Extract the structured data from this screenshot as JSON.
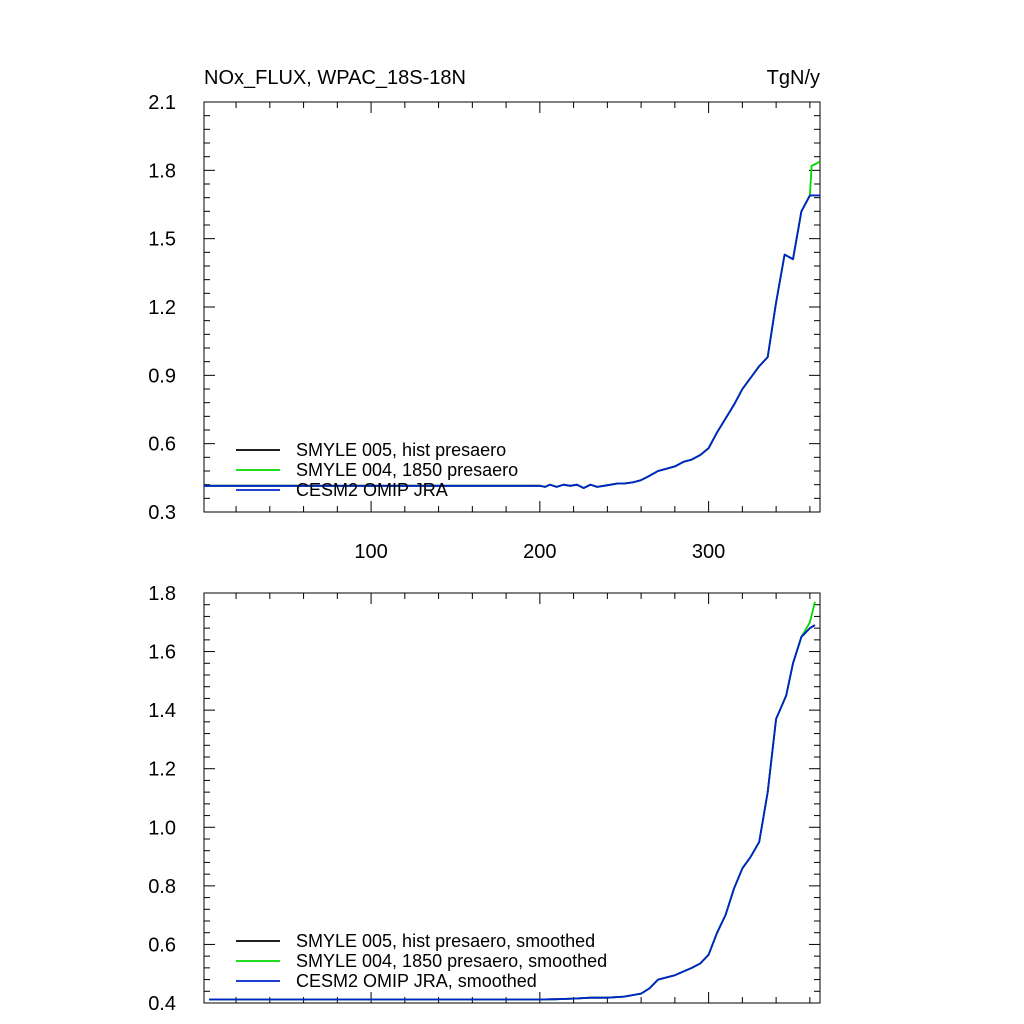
{
  "chart_data": [
    {
      "type": "line",
      "title_left": "NOx_FLUX, WPAC_18S-18N",
      "title_right": "TgN/y",
      "xlim": [
        1,
        366
      ],
      "ylim": [
        0.3,
        2.1
      ],
      "x_ticks": [
        100,
        200,
        300
      ],
      "y_ticks": [
        0.3,
        0.6,
        0.9,
        1.2,
        1.5,
        1.8,
        2.1
      ],
      "y_tick_labels": [
        "0.3",
        "0.6",
        "0.9",
        "1.2",
        "1.5",
        "1.8",
        "2.1"
      ],
      "x_tick_labels": [
        "100",
        "200",
        "300"
      ],
      "legend_position": "bottom-left",
      "series": [
        {
          "name": "SMYLE 005, hist presaero",
          "color": "#000000",
          "x": [
            1,
            200,
            203,
            206,
            210,
            214,
            218,
            222,
            226,
            230,
            234,
            238,
            242,
            246,
            250,
            255,
            260,
            264,
            270,
            275,
            280,
            285,
            290,
            295,
            300,
            305,
            310,
            315,
            320,
            325,
            330,
            335,
            340,
            345,
            350,
            355,
            360,
            366
          ],
          "y": [
            0.415,
            0.415,
            0.41,
            0.42,
            0.41,
            0.42,
            0.415,
            0.42,
            0.405,
            0.42,
            0.41,
            0.415,
            0.42,
            0.425,
            0.425,
            0.43,
            0.44,
            0.455,
            0.48,
            0.49,
            0.5,
            0.52,
            0.53,
            0.55,
            0.58,
            0.65,
            0.71,
            0.77,
            0.84,
            0.89,
            0.94,
            0.98,
            1.22,
            1.43,
            1.41,
            1.62,
            1.69,
            1.69
          ]
        },
        {
          "name": "SMYLE 004, 1850 presaero",
          "color": "#00d800",
          "x": [
            1,
            200,
            203,
            206,
            210,
            214,
            218,
            222,
            226,
            230,
            234,
            238,
            242,
            246,
            250,
            255,
            260,
            264,
            270,
            275,
            280,
            285,
            290,
            295,
            300,
            305,
            310,
            315,
            320,
            325,
            330,
            335,
            340,
            345,
            350,
            355,
            360,
            361,
            364,
            366
          ],
          "y": [
            0.415,
            0.415,
            0.41,
            0.42,
            0.41,
            0.42,
            0.415,
            0.42,
            0.405,
            0.42,
            0.41,
            0.415,
            0.42,
            0.425,
            0.425,
            0.43,
            0.44,
            0.455,
            0.48,
            0.49,
            0.5,
            0.52,
            0.53,
            0.55,
            0.58,
            0.65,
            0.71,
            0.77,
            0.84,
            0.89,
            0.94,
            0.98,
            1.22,
            1.43,
            1.41,
            1.62,
            1.69,
            1.82,
            1.83,
            1.84
          ]
        },
        {
          "name": "CESM2 OMIP JRA",
          "color": "#0022cc",
          "x": [
            1,
            200,
            203,
            206,
            210,
            214,
            218,
            222,
            226,
            230,
            234,
            238,
            242,
            246,
            250,
            255,
            260,
            264,
            270,
            275,
            280,
            285,
            290,
            295,
            300,
            305,
            310,
            315,
            320,
            325,
            330,
            335,
            340,
            345,
            350,
            355,
            360,
            366
          ],
          "y": [
            0.415,
            0.415,
            0.41,
            0.42,
            0.41,
            0.42,
            0.415,
            0.42,
            0.405,
            0.42,
            0.41,
            0.415,
            0.42,
            0.425,
            0.425,
            0.43,
            0.44,
            0.455,
            0.48,
            0.49,
            0.5,
            0.52,
            0.53,
            0.55,
            0.58,
            0.65,
            0.71,
            0.77,
            0.84,
            0.89,
            0.94,
            0.98,
            1.22,
            1.43,
            1.41,
            1.62,
            1.69,
            1.69
          ]
        }
      ]
    },
    {
      "type": "line",
      "xlim": [
        1,
        366
      ],
      "ylim": [
        0.4,
        1.8
      ],
      "x_ticks": [
        100,
        200,
        300
      ],
      "y_ticks": [
        0.4,
        0.6,
        0.8,
        1.0,
        1.2,
        1.4,
        1.6,
        1.8
      ],
      "y_tick_labels": [
        "0.4",
        "0.6",
        "0.8",
        "1.0",
        "1.2",
        "1.4",
        "1.6",
        "1.8"
      ],
      "legend_position": "bottom-left",
      "series": [
        {
          "name": "SMYLE 005, hist presaero, smoothed",
          "color": "#000000",
          "x": [
            4,
            200,
            210,
            220,
            230,
            240,
            250,
            260,
            265,
            270,
            280,
            290,
            295,
            300,
            305,
            310,
            315,
            320,
            325,
            330,
            335,
            340,
            343,
            346,
            350,
            355,
            360,
            363
          ],
          "y": [
            0.412,
            0.412,
            0.413,
            0.415,
            0.418,
            0.418,
            0.422,
            0.432,
            0.45,
            0.48,
            0.495,
            0.52,
            0.535,
            0.565,
            0.64,
            0.7,
            0.79,
            0.86,
            0.9,
            0.95,
            1.12,
            1.37,
            1.41,
            1.45,
            1.56,
            1.65,
            1.68,
            1.69
          ]
        },
        {
          "name": "SMYLE 004, 1850 presaero, smoothed",
          "color": "#00d800",
          "x": [
            4,
            200,
            210,
            220,
            230,
            240,
            250,
            260,
            265,
            270,
            280,
            290,
            295,
            300,
            305,
            310,
            315,
            320,
            325,
            330,
            335,
            340,
            343,
            346,
            350,
            355,
            360,
            363
          ],
          "y": [
            0.412,
            0.412,
            0.413,
            0.415,
            0.418,
            0.418,
            0.422,
            0.432,
            0.45,
            0.48,
            0.495,
            0.52,
            0.535,
            0.565,
            0.64,
            0.7,
            0.79,
            0.86,
            0.9,
            0.95,
            1.12,
            1.37,
            1.41,
            1.45,
            1.56,
            1.65,
            1.7,
            1.77
          ]
        },
        {
          "name": "CESM2 OMIP JRA, smoothed",
          "color": "#0022cc",
          "x": [
            4,
            200,
            210,
            220,
            230,
            240,
            250,
            260,
            265,
            270,
            280,
            290,
            295,
            300,
            305,
            310,
            315,
            320,
            325,
            330,
            335,
            340,
            343,
            346,
            350,
            355,
            360,
            363
          ],
          "y": [
            0.412,
            0.412,
            0.413,
            0.415,
            0.418,
            0.418,
            0.422,
            0.432,
            0.45,
            0.48,
            0.495,
            0.52,
            0.535,
            0.565,
            0.64,
            0.7,
            0.79,
            0.86,
            0.9,
            0.95,
            1.12,
            1.37,
            1.41,
            1.45,
            1.56,
            1.65,
            1.68,
            1.69
          ]
        }
      ]
    }
  ]
}
